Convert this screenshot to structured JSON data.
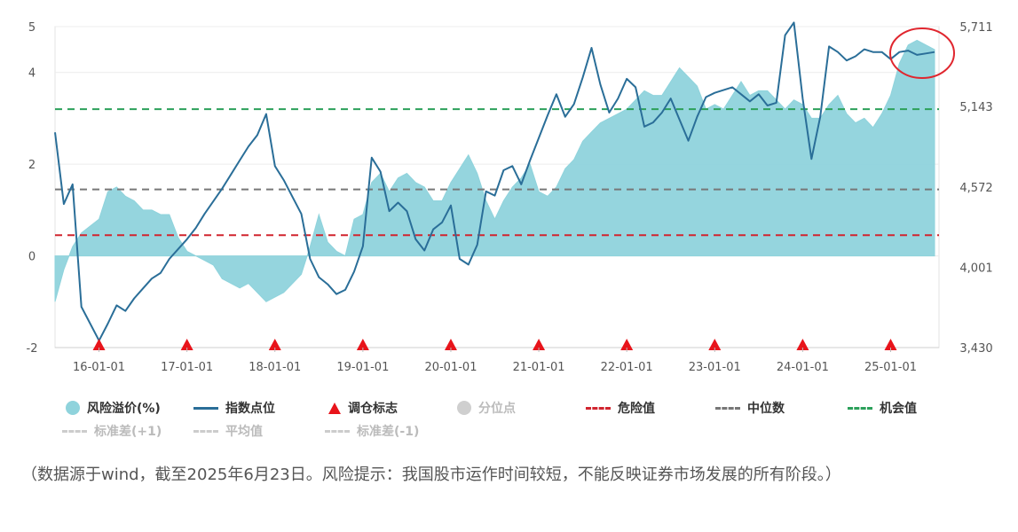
{
  "chart_data": {
    "type": "line",
    "x_ticks": [
      "16-01-01",
      "17-01-01",
      "18-01-01",
      "19-01-01",
      "20-01-01",
      "21-01-01",
      "22-01-01",
      "23-01-01",
      "24-01-01",
      "25-01-01"
    ],
    "y_left_ticks": [
      "5",
      "4",
      "2",
      "0",
      "-2"
    ],
    "y_left_range": [
      -2,
      5
    ],
    "y_right_ticks": [
      "5,711",
      "5,143",
      "4,572",
      "4,001",
      "3,430"
    ],
    "y_right_range": [
      3430,
      5711
    ],
    "reference_lines": [
      {
        "name": "机会值",
        "value": 3.2,
        "color": "#2ca05a"
      },
      {
        "name": "中位数",
        "value": 1.45,
        "color": "#777777"
      },
      {
        "name": "危险值",
        "value": 0.45,
        "color": "#d1252f"
      }
    ],
    "rebalance_markers": [
      "16-01-01",
      "17-01-01",
      "18-01-01",
      "19-01-01",
      "20-01-01",
      "21-01-01",
      "22-01-01",
      "23-01-01",
      "24-01-01",
      "25-01-01"
    ],
    "series": [
      {
        "name": "风险溢价(%)",
        "kind": "area",
        "color": "#8fd3dc",
        "x": [
          2015.5,
          2015.6,
          2015.7,
          2015.8,
          2016.0,
          2016.1,
          2016.2,
          2016.3,
          2016.4,
          2016.5,
          2016.6,
          2016.7,
          2016.8,
          2016.9,
          2017.0,
          2017.1,
          2017.2,
          2017.3,
          2017.4,
          2017.5,
          2017.6,
          2017.7,
          2017.8,
          2017.9,
          2018.0,
          2018.1,
          2018.2,
          2018.3,
          2018.4,
          2018.5,
          2018.6,
          2018.7,
          2018.8,
          2018.9,
          2019.0,
          2019.1,
          2019.2,
          2019.3,
          2019.4,
          2019.5,
          2019.6,
          2019.7,
          2019.8,
          2019.9,
          2020.0,
          2020.1,
          2020.2,
          2020.3,
          2020.4,
          2020.5,
          2020.6,
          2020.7,
          2020.8,
          2020.9,
          2021.0,
          2021.1,
          2021.2,
          2021.3,
          2021.4,
          2021.5,
          2021.6,
          2021.7,
          2021.8,
          2021.9,
          2022.0,
          2022.1,
          2022.2,
          2022.3,
          2022.4,
          2022.5,
          2022.6,
          2022.7,
          2022.8,
          2022.9,
          2023.0,
          2023.1,
          2023.2,
          2023.3,
          2023.4,
          2023.5,
          2023.6,
          2023.7,
          2023.8,
          2023.9,
          2024.0,
          2024.1,
          2024.2,
          2024.3,
          2024.4,
          2024.5,
          2024.6,
          2024.7,
          2024.8,
          2024.9,
          2025.0,
          2025.1,
          2025.2,
          2025.3,
          2025.4,
          2025.5
        ],
        "values": [
          -1.0,
          -0.3,
          0.2,
          0.5,
          0.8,
          1.4,
          1.5,
          1.3,
          1.2,
          1.0,
          1.0,
          0.9,
          0.9,
          0.4,
          0.1,
          0.0,
          -0.1,
          -0.2,
          -0.5,
          -0.6,
          -0.7,
          -0.6,
          -0.8,
          -1.0,
          -0.9,
          -0.8,
          -0.6,
          -0.4,
          0.2,
          0.9,
          0.3,
          0.1,
          0.0,
          0.8,
          0.9,
          1.6,
          1.8,
          1.4,
          1.7,
          1.8,
          1.6,
          1.5,
          1.2,
          1.2,
          1.6,
          1.9,
          2.2,
          1.8,
          1.2,
          0.8,
          1.2,
          1.5,
          1.7,
          2.0,
          1.4,
          1.3,
          1.5,
          1.9,
          2.1,
          2.5,
          2.7,
          2.9,
          3.0,
          3.1,
          3.2,
          3.4,
          3.6,
          3.5,
          3.5,
          3.8,
          4.1,
          3.9,
          3.7,
          3.2,
          3.3,
          3.2,
          3.5,
          3.8,
          3.5,
          3.6,
          3.6,
          3.4,
          3.2,
          3.4,
          3.3,
          3.0,
          3.0,
          3.3,
          3.5,
          3.1,
          2.9,
          3.0,
          2.8,
          3.1,
          3.5,
          4.2,
          4.6,
          4.7,
          4.6,
          4.5
        ]
      },
      {
        "name": "指数点位",
        "kind": "line",
        "color": "#2a6e98",
        "x": [
          2015.5,
          2015.6,
          2015.7,
          2015.8,
          2016.0,
          2016.1,
          2016.2,
          2016.3,
          2016.4,
          2016.5,
          2016.6,
          2016.7,
          2016.8,
          2016.9,
          2017.0,
          2017.1,
          2017.2,
          2017.3,
          2017.4,
          2017.5,
          2017.6,
          2017.7,
          2017.8,
          2017.9,
          2018.0,
          2018.1,
          2018.2,
          2018.3,
          2018.4,
          2018.5,
          2018.6,
          2018.7,
          2018.8,
          2018.9,
          2019.0,
          2019.1,
          2019.2,
          2019.3,
          2019.4,
          2019.5,
          2019.6,
          2019.7,
          2019.8,
          2019.9,
          2020.0,
          2020.1,
          2020.2,
          2020.3,
          2020.4,
          2020.5,
          2020.6,
          2020.7,
          2020.8,
          2020.9,
          2021.0,
          2021.1,
          2021.2,
          2021.3,
          2021.4,
          2021.5,
          2021.6,
          2021.7,
          2021.8,
          2021.9,
          2022.0,
          2022.1,
          2022.2,
          2022.3,
          2022.4,
          2022.5,
          2022.6,
          2022.7,
          2022.8,
          2022.9,
          2023.0,
          2023.1,
          2023.2,
          2023.3,
          2023.4,
          2023.5,
          2023.6,
          2023.7,
          2023.8,
          2023.9,
          2024.0,
          2024.1,
          2024.2,
          2024.3,
          2024.4,
          2024.5,
          2024.6,
          2024.7,
          2024.8,
          2024.9,
          2025.0,
          2025.1,
          2025.2,
          2025.3,
          2025.4,
          2025.5
        ],
        "values": [
          4960,
          4450,
          4590,
          3720,
          3480,
          3600,
          3730,
          3690,
          3780,
          3850,
          3920,
          3960,
          4060,
          4130,
          4200,
          4280,
          4380,
          4470,
          4560,
          4660,
          4760,
          4860,
          4940,
          5090,
          4720,
          4620,
          4500,
          4380,
          4060,
          3930,
          3880,
          3810,
          3840,
          3970,
          4150,
          4780,
          4680,
          4400,
          4460,
          4400,
          4200,
          4120,
          4270,
          4320,
          4440,
          4060,
          4020,
          4160,
          4540,
          4510,
          4690,
          4720,
          4590,
          4760,
          4920,
          5080,
          5230,
          5070,
          5160,
          5350,
          5560,
          5300,
          5100,
          5200,
          5340,
          5280,
          5000,
          5030,
          5100,
          5200,
          5050,
          4900,
          5070,
          5210,
          5240,
          5260,
          5280,
          5230,
          5180,
          5230,
          5150,
          5170,
          5650,
          5740,
          5200,
          4770,
          5070,
          5570,
          5530,
          5470,
          5500,
          5550,
          5530,
          5530,
          5480,
          5530,
          5540,
          5510,
          5520,
          5530
        ]
      }
    ]
  },
  "legend": {
    "row1": [
      "风险溢价(%)",
      "指数点位",
      "调仓标志",
      "分位点",
      "危险值",
      "中位数",
      "机会值"
    ],
    "row2": [
      "标准差(+1)",
      "平均值",
      "标准差(-1)"
    ]
  },
  "colors": {
    "area": "#8fd3dc",
    "index_line": "#2a6e98",
    "danger": "#d1252f",
    "median": "#777777",
    "opportunity": "#2ca05a",
    "marker": "#e8141b",
    "highlight_circle": "#e0262e"
  },
  "note": "（数据源于wind，截至2025年6月23日。风险提示：我国股市运作时间较短，不能反映证券市场发展的所有阶段。）"
}
